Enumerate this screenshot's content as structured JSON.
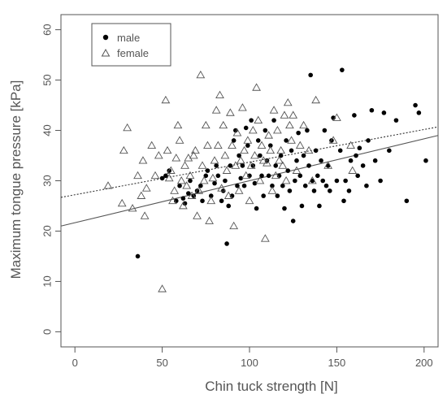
{
  "chart_data": {
    "type": "scatter",
    "xlabel": "Chin tuck strength [N]",
    "ylabel": "Maximum tongue pressure [kPa]",
    "xlim": [
      -8,
      208
    ],
    "ylim": [
      -3,
      63
    ],
    "x_ticks": [
      0,
      50,
      100,
      150,
      200
    ],
    "y_ticks": [
      0,
      10,
      20,
      30,
      40,
      50,
      60
    ],
    "grid": false,
    "legend_position": "top-left",
    "series": [
      {
        "name": "male",
        "marker": "filled-circle",
        "color": "#000000",
        "points": [
          [
            36,
            15
          ],
          [
            50,
            30.5
          ],
          [
            52,
            31
          ],
          [
            54,
            32
          ],
          [
            58,
            26
          ],
          [
            60,
            29
          ],
          [
            62,
            26.5
          ],
          [
            63,
            25.5
          ],
          [
            65,
            27.5
          ],
          [
            66,
            30
          ],
          [
            68,
            27
          ],
          [
            70,
            28
          ],
          [
            72,
            29
          ],
          [
            73,
            26
          ],
          [
            75,
            31
          ],
          [
            76,
            32
          ],
          [
            78,
            27
          ],
          [
            80,
            29.5
          ],
          [
            81,
            33
          ],
          [
            82,
            31
          ],
          [
            84,
            26
          ],
          [
            85,
            28
          ],
          [
            86,
            30
          ],
          [
            87,
            17.5
          ],
          [
            88,
            25
          ],
          [
            89,
            33
          ],
          [
            90,
            27
          ],
          [
            91,
            38
          ],
          [
            92,
            40
          ],
          [
            93,
            29
          ],
          [
            94,
            35
          ],
          [
            95,
            30.5
          ],
          [
            96,
            33
          ],
          [
            97,
            29
          ],
          [
            98,
            40.5
          ],
          [
            99,
            37
          ],
          [
            100,
            31
          ],
          [
            101,
            42
          ],
          [
            102,
            33
          ],
          [
            103,
            29.5
          ],
          [
            104,
            24.5
          ],
          [
            105,
            38
          ],
          [
            106,
            35
          ],
          [
            107,
            31
          ],
          [
            108,
            27
          ],
          [
            109,
            40
          ],
          [
            110,
            34
          ],
          [
            111,
            31
          ],
          [
            112,
            37
          ],
          [
            113,
            29
          ],
          [
            114,
            42
          ],
          [
            115,
            33
          ],
          [
            116,
            27
          ],
          [
            117,
            31
          ],
          [
            118,
            35
          ],
          [
            119,
            29
          ],
          [
            120,
            24.5
          ],
          [
            121,
            38
          ],
          [
            122,
            32
          ],
          [
            123,
            28
          ],
          [
            124,
            36
          ],
          [
            125,
            22
          ],
          [
            126,
            30
          ],
          [
            127,
            34
          ],
          [
            128,
            39.5
          ],
          [
            129,
            31
          ],
          [
            130,
            25
          ],
          [
            131,
            35
          ],
          [
            132,
            29
          ],
          [
            133,
            40
          ],
          [
            134,
            33
          ],
          [
            135,
            51
          ],
          [
            136,
            30
          ],
          [
            137,
            28
          ],
          [
            138,
            36
          ],
          [
            139,
            31
          ],
          [
            140,
            25
          ],
          [
            141,
            34
          ],
          [
            142,
            30
          ],
          [
            143,
            40
          ],
          [
            144,
            29
          ],
          [
            145,
            33
          ],
          [
            146,
            28
          ],
          [
            147,
            38
          ],
          [
            148,
            42.5
          ],
          [
            150,
            30
          ],
          [
            152,
            36
          ],
          [
            153,
            52
          ],
          [
            154,
            26
          ],
          [
            155,
            30
          ],
          [
            157,
            28
          ],
          [
            158,
            34
          ],
          [
            160,
            43
          ],
          [
            161,
            35
          ],
          [
            162,
            31
          ],
          [
            163,
            36.5
          ],
          [
            165,
            33
          ],
          [
            167,
            29
          ],
          [
            168,
            38
          ],
          [
            170,
            44
          ],
          [
            172,
            34
          ],
          [
            175,
            30
          ],
          [
            177,
            43.5
          ],
          [
            180,
            36
          ],
          [
            184,
            42
          ],
          [
            190,
            26
          ],
          [
            195,
            45
          ],
          [
            197,
            43.5
          ],
          [
            201,
            34
          ]
        ]
      },
      {
        "name": "female",
        "marker": "open-triangle",
        "color": "#555555",
        "points": [
          [
            19,
            29
          ],
          [
            27,
            25.5
          ],
          [
            28,
            36
          ],
          [
            30,
            40.5
          ],
          [
            33,
            24.5
          ],
          [
            36,
            31
          ],
          [
            38,
            27
          ],
          [
            39,
            34
          ],
          [
            40,
            23
          ],
          [
            41,
            28.5
          ],
          [
            44,
            37
          ],
          [
            46,
            31
          ],
          [
            48,
            35
          ],
          [
            50,
            8.5
          ],
          [
            52,
            46
          ],
          [
            53,
            36
          ],
          [
            54,
            30.5
          ],
          [
            55,
            32
          ],
          [
            56,
            26
          ],
          [
            57,
            28
          ],
          [
            58,
            34.5
          ],
          [
            59,
            41
          ],
          [
            60,
            38
          ],
          [
            61,
            30
          ],
          [
            62,
            25
          ],
          [
            63,
            33
          ],
          [
            64,
            29
          ],
          [
            65,
            34.5
          ],
          [
            66,
            31
          ],
          [
            67,
            27
          ],
          [
            68,
            35
          ],
          [
            69,
            36
          ],
          [
            70,
            23
          ],
          [
            71,
            28
          ],
          [
            72,
            51
          ],
          [
            73,
            33
          ],
          [
            74,
            30
          ],
          [
            75,
            41
          ],
          [
            76,
            37
          ],
          [
            77,
            22
          ],
          [
            78,
            26
          ],
          [
            79,
            30.5
          ],
          [
            80,
            34
          ],
          [
            81,
            44
          ],
          [
            82,
            37
          ],
          [
            83,
            47
          ],
          [
            84,
            28.5
          ],
          [
            85,
            41
          ],
          [
            86,
            35
          ],
          [
            87,
            32
          ],
          [
            88,
            27
          ],
          [
            89,
            43.5
          ],
          [
            90,
            37
          ],
          [
            91,
            21
          ],
          [
            92,
            33
          ],
          [
            93,
            39.5
          ],
          [
            94,
            28
          ],
          [
            95,
            34
          ],
          [
            96,
            44.5
          ],
          [
            97,
            36
          ],
          [
            98,
            31
          ],
          [
            99,
            38
          ],
          [
            100,
            26
          ],
          [
            101,
            33
          ],
          [
            102,
            40
          ],
          [
            103,
            35
          ],
          [
            104,
            48.5
          ],
          [
            105,
            42
          ],
          [
            106,
            30
          ],
          [
            107,
            37
          ],
          [
            108,
            34
          ],
          [
            109,
            18.5
          ],
          [
            110,
            33.5
          ],
          [
            111,
            39
          ],
          [
            112,
            36
          ],
          [
            113,
            28
          ],
          [
            114,
            44
          ],
          [
            115,
            31
          ],
          [
            116,
            40
          ],
          [
            117,
            34
          ],
          [
            118,
            36
          ],
          [
            119,
            33
          ],
          [
            120,
            43
          ],
          [
            121,
            30
          ],
          [
            122,
            45.5
          ],
          [
            123,
            41
          ],
          [
            124,
            38
          ],
          [
            125,
            43
          ],
          [
            127,
            32
          ],
          [
            129,
            37
          ],
          [
            131,
            41
          ],
          [
            134,
            36
          ],
          [
            136,
            30
          ],
          [
            138,
            46
          ],
          [
            145,
            33
          ],
          [
            148,
            38
          ],
          [
            150,
            42.5
          ],
          [
            158,
            37
          ],
          [
            159,
            32
          ]
        ]
      },
      {
        "name": "male fit",
        "line_style": "solid",
        "color": "#555555",
        "points": [
          [
            -8,
            21
          ],
          [
            208,
            39
          ]
        ]
      },
      {
        "name": "female fit",
        "line_style": "dotted",
        "color": "#333333",
        "points": [
          [
            -8,
            26.7
          ],
          [
            208,
            40.7
          ]
        ]
      }
    ]
  }
}
